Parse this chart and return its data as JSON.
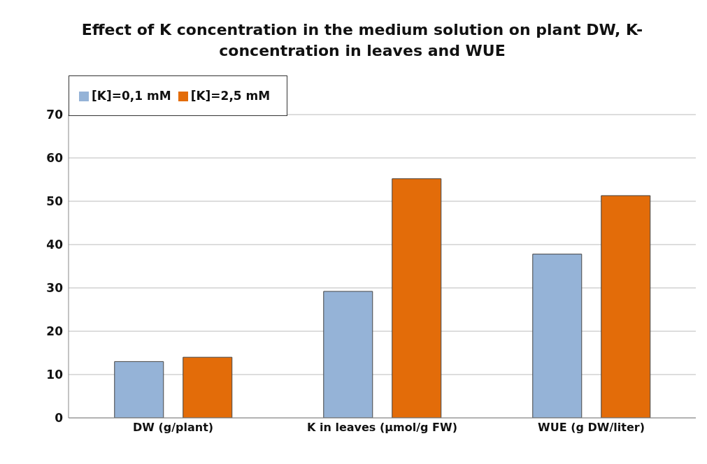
{
  "chart_data": {
    "type": "bar",
    "title": "Effect of K concentration in the medium solution on plant DW, K-concentration in leaves and WUE",
    "categories": [
      "DW (g/plant)",
      "K in leaves (µmol/g FW)",
      "WUE (g DW/liter)"
    ],
    "series": [
      {
        "name": "[K]=0,1 mM",
        "color": "#95b3d7",
        "values": [
          13.0,
          29.2,
          37.8
        ]
      },
      {
        "name": "[K]=2,5 mM",
        "color": "#e36c09",
        "values": [
          14.0,
          55.2,
          51.3
        ]
      }
    ],
    "ylim": [
      0,
      70
    ],
    "yticks": [
      0,
      10,
      20,
      30,
      40,
      50,
      60,
      70
    ],
    "grid": "y",
    "legend": "top left"
  }
}
